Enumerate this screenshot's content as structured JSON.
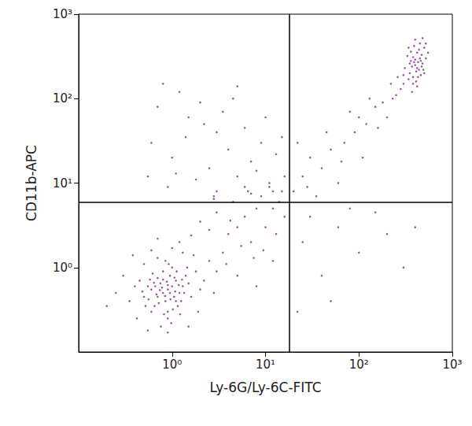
{
  "chart_data": {
    "type": "scatter",
    "x_label": "Ly-6G/Ly-6C-FITC",
    "y_label": "CD11b-APC",
    "log": true,
    "grid": false,
    "color": "#7d2a8c",
    "marker": "circle",
    "xlim": [
      0.1,
      1000
    ],
    "ylim": [
      0.1,
      1000
    ],
    "xticks": [
      {
        "value": 1,
        "label": "10⁰"
      },
      {
        "value": 10,
        "label": "10¹"
      },
      {
        "value": 100,
        "label": "10²"
      },
      {
        "value": 1000,
        "label": "10³"
      }
    ],
    "yticks": [
      {
        "value": 1,
        "label": "10⁰"
      },
      {
        "value": 10,
        "label": "10¹"
      },
      {
        "value": 100,
        "label": "10²"
      },
      {
        "value": 1000,
        "label": "10³"
      }
    ],
    "reference_lines": {
      "x": [
        18
      ],
      "y": [
        6
      ]
    },
    "x": [
      0.9,
      0.8,
      1.0,
      0.7,
      1.1,
      0.85,
      0.95,
      0.6,
      1.2,
      0.75,
      0.9,
      1.05,
      0.65,
      1.3,
      0.8,
      0.55,
      1.0,
      0.7,
      1.15,
      0.9,
      0.5,
      1.4,
      0.85,
      0.6,
      1.25,
      0.95,
      0.78,
      1.08,
      0.68,
      0.88,
      1.18,
      0.58,
      0.72,
      1.02,
      0.82,
      1.35,
      0.62,
      0.92,
      1.12,
      0.48,
      1.5,
      0.7,
      0.98,
      0.76,
      1.22,
      0.52,
      1.6,
      0.45,
      1.45,
      0.66,
      0.84,
      1.06,
      0.9,
      0.74,
      0.96,
      1.28,
      0.56,
      0.8,
      1.1,
      0.64,
      1.8,
      2.0,
      0.4,
      0.35,
      1.7,
      0.6,
      1.0,
      1.3,
      0.5,
      2.2,
      0.42,
      1.9,
      0.3,
      2.5,
      0.25,
      0.9,
      1.5,
      0.55,
      2.8,
      0.38,
      1.2,
      3.0,
      0.2,
      0.7,
      3.5,
      4,
      5,
      2.5,
      6,
      7,
      3,
      8,
      4.5,
      10,
      12,
      9,
      2,
      5.5,
      6.5,
      11,
      14,
      3.8,
      7.5,
      13,
      16,
      15,
      2.8,
      4.2,
      1.6,
      9.5,
      5,
      8,
      12,
      0.8,
      1.2,
      2,
      1.5,
      3,
      0.6,
      1,
      2.5,
      4,
      5,
      7,
      9,
      3,
      6,
      1.8,
      0.9,
      2.2,
      4.5,
      1.4,
      8,
      11,
      13,
      10,
      6,
      3.5,
      0.7,
      1.1,
      2.8,
      5,
      16,
      12,
      15,
      0.55,
      7,
      25,
      40,
      60,
      100,
      30,
      200,
      50,
      150,
      300,
      22,
      80,
      400,
      20,
      25,
      30,
      40,
      35,
      50,
      70,
      60,
      90,
      100,
      120,
      80,
      150,
      110,
      45,
      22,
      180,
      130,
      160,
      200,
      28,
      65,
      400,
      350,
      450,
      380,
      420,
      300,
      500,
      360,
      440,
      480,
      330,
      410,
      390,
      460,
      370,
      430,
      340,
      470,
      520,
      400,
      450,
      310,
      280,
      250,
      420,
      360,
      490,
      380,
      440,
      350,
      410,
      300,
      470,
      520,
      400,
      380,
      340,
      430,
      460,
      500,
      220,
      260,
      230,
      370,
      550,
      480,
      420,
      390
    ],
    "values": [
      0.55,
      0.5,
      0.6,
      0.45,
      0.7,
      0.4,
      0.8,
      0.55,
      0.5,
      0.65,
      0.3,
      0.45,
      0.35,
      0.6,
      0.9,
      0.6,
      1.0,
      0.75,
      0.35,
      0.25,
      0.45,
      0.8,
      1.2,
      0.3,
      0.4,
      0.5,
      0.58,
      0.52,
      0.48,
      0.68,
      0.62,
      0.72,
      0.38,
      0.32,
      0.28,
      0.5,
      0.85,
      1.1,
      0.9,
      0.52,
      0.65,
      1.3,
      0.22,
      0.2,
      0.28,
      0.35,
      0.45,
      0.7,
      1.0,
      0.6,
      0.46,
      0.76,
      0.62,
      0.54,
      0.42,
      0.72,
      0.42,
      0.72,
      0.4,
      0.66,
      0.9,
      0.55,
      0.6,
      0.4,
      1.4,
      1.6,
      1.7,
      1.5,
      1.1,
      0.7,
      0.25,
      0.3,
      0.8,
      1.2,
      0.5,
      0.17,
      0.2,
      0.18,
      0.5,
      1.4,
      2.0,
      0.9,
      0.35,
      2.2,
      1.5,
      2.5,
      3,
      2.8,
      4,
      2,
      4.5,
      5,
      6,
      3,
      5,
      7,
      3.5,
      1.8,
      8,
      9,
      6,
      1.1,
      1.3,
      2.5,
      4,
      8,
      6.5,
      3.6,
      2.4,
      1.6,
      0.8,
      0.6,
      1.2,
      150,
      120,
      90,
      60,
      40,
      30,
      20,
      15,
      25,
      12,
      18,
      30,
      8,
      9,
      11,
      9,
      50,
      100,
      35,
      14,
      10,
      22,
      60,
      45,
      70,
      80,
      13,
      7,
      140,
      12,
      8,
      35,
      12,
      7.5,
      2,
      0.8,
      3,
      1.5,
      4,
      2.5,
      0.4,
      4.5,
      1,
      0.3,
      5,
      3,
      8,
      12,
      20,
      15,
      7,
      25,
      30,
      10,
      40,
      60,
      50,
      70,
      80,
      20,
      40,
      30,
      90,
      100,
      45,
      60,
      9,
      18,
      250,
      200,
      300,
      180,
      350,
      150,
      400,
      280,
      220,
      260,
      320,
      160,
      420,
      190,
      240,
      270,
      170,
      330,
      300,
      500,
      450,
      230,
      130,
      110,
      140,
      360,
      220,
      310,
      380,
      260,
      210,
      190,
      240,
      450,
      290,
      150,
      400,
      180,
      280,
      200,
      150,
      180,
      100,
      120,
      350,
      520,
      230,
      270
    ]
  }
}
